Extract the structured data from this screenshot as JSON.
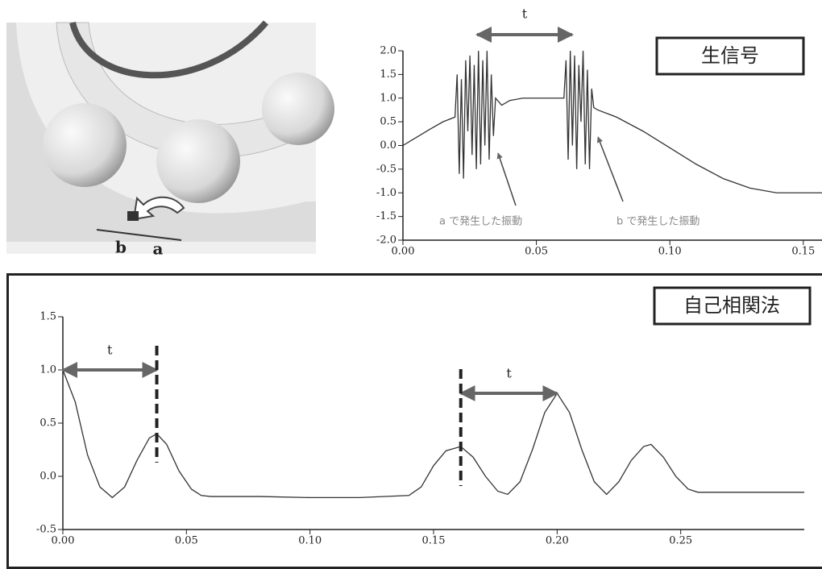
{
  "illustration": {
    "labels": [
      "b",
      "a"
    ]
  },
  "chart_data": [
    {
      "type": "line",
      "label_box": "生信号",
      "color": "#333333",
      "annotations": [
        {
          "text": "t"
        },
        {
          "text": "a で発生した振動"
        },
        {
          "text": "b で発生した振動"
        }
      ],
      "xlim": [
        0,
        0.157
      ],
      "ylim": [
        -2,
        2
      ],
      "xticks": [
        {
          "value": 0,
          "label": "0.00"
        },
        {
          "value": 0.05,
          "label": "0.05"
        },
        {
          "value": 0.1,
          "label": "0.10"
        },
        {
          "value": 0.15,
          "label": "0.15"
        }
      ],
      "yticks": [
        {
          "value": 2,
          "label": "2.0"
        },
        {
          "value": 1.5,
          "label": "1.5"
        },
        {
          "value": 1,
          "label": "1.0"
        },
        {
          "value": 0.5,
          "label": "0.5"
        },
        {
          "value": 0,
          "label": "0.0"
        },
        {
          "value": -0.5,
          "label": "-0.5"
        },
        {
          "value": -1,
          "label": "-1.0"
        },
        {
          "value": -1.5,
          "label": "-1.5"
        },
        {
          "value": -2,
          "label": "-2.0"
        }
      ],
      "x": [
        0,
        0.005,
        0.01,
        0.015,
        0.0195,
        0.0203,
        0.0211,
        0.0219,
        0.0227,
        0.0235,
        0.0243,
        0.0251,
        0.0259,
        0.0267,
        0.0275,
        0.0283,
        0.0291,
        0.0299,
        0.0307,
        0.0315,
        0.0323,
        0.0331,
        0.0339,
        0.0347,
        0.037,
        0.04,
        0.045,
        0.05,
        0.055,
        0.0595,
        0.0603,
        0.0611,
        0.0619,
        0.0627,
        0.0635,
        0.0643,
        0.0651,
        0.0659,
        0.0667,
        0.0675,
        0.0683,
        0.0691,
        0.0699,
        0.0707,
        0.0715,
        0.073,
        0.08,
        0.09,
        0.1,
        0.11,
        0.12,
        0.13,
        0.14,
        0.15,
        0.157
      ],
      "values": [
        0,
        0.17,
        0.34,
        0.5,
        0.6,
        1.5,
        -0.6,
        1.4,
        -0.7,
        1.8,
        0.3,
        1.9,
        -0.2,
        1.7,
        -0.5,
        2.0,
        -0.4,
        1.8,
        0.0,
        2.0,
        -0.3,
        1.5,
        0.2,
        1.0,
        0.85,
        0.95,
        1.0,
        1.0,
        1.0,
        1.0,
        1.0,
        1.8,
        -0.3,
        2.0,
        0.0,
        1.9,
        -0.5,
        1.7,
        0.5,
        2.0,
        -0.4,
        1.6,
        -0.5,
        1.2,
        0.8,
        0.75,
        0.6,
        0.3,
        -0.05,
        -0.4,
        -0.7,
        -0.9,
        -1.0,
        -1.0,
        -1.0
      ]
    },
    {
      "type": "line",
      "label_box": "自己相関法",
      "color": "#333333",
      "annotations": [
        {
          "text": "t",
          "x": [
            0,
            0.038
          ],
          "y": 1.0
        },
        {
          "text": "t",
          "x": [
            0.161,
            0.2
          ],
          "y": 0.78
        }
      ],
      "xlim": [
        0,
        0.3
      ],
      "ylim": [
        -0.5,
        1.5
      ],
      "xticks": [
        {
          "value": 0,
          "label": "0.00"
        },
        {
          "value": 0.05,
          "label": "0.05"
        },
        {
          "value": 0.1,
          "label": "0.10"
        },
        {
          "value": 0.15,
          "label": "0.15"
        },
        {
          "value": 0.2,
          "label": "0.20"
        },
        {
          "value": 0.25,
          "label": "0.25"
        }
      ],
      "yticks": [
        {
          "value": 1.5,
          "label": "1.5"
        },
        {
          "value": 1,
          "label": "1.0"
        },
        {
          "value": 0.5,
          "label": "0.5"
        },
        {
          "value": 0,
          "label": "0.0"
        },
        {
          "value": -0.5,
          "label": "-0.5"
        }
      ],
      "x": [
        0,
        0.005,
        0.01,
        0.015,
        0.02,
        0.025,
        0.03,
        0.035,
        0.038,
        0.042,
        0.047,
        0.052,
        0.056,
        0.06,
        0.08,
        0.1,
        0.12,
        0.14,
        0.145,
        0.15,
        0.155,
        0.161,
        0.166,
        0.171,
        0.176,
        0.18,
        0.185,
        0.19,
        0.195,
        0.2,
        0.205,
        0.21,
        0.215,
        0.22,
        0.225,
        0.23,
        0.235,
        0.238,
        0.243,
        0.248,
        0.253,
        0.257,
        0.27,
        0.3
      ],
      "values": [
        1.0,
        0.7,
        0.2,
        -0.1,
        -0.2,
        -0.1,
        0.15,
        0.36,
        0.4,
        0.3,
        0.05,
        -0.12,
        -0.18,
        -0.19,
        -0.19,
        -0.2,
        -0.2,
        -0.18,
        -0.1,
        0.1,
        0.24,
        0.28,
        0.18,
        0.0,
        -0.14,
        -0.17,
        -0.05,
        0.25,
        0.6,
        0.78,
        0.6,
        0.25,
        -0.05,
        -0.17,
        -0.05,
        0.15,
        0.28,
        0.3,
        0.18,
        0.0,
        -0.12,
        -0.15,
        -0.15,
        -0.15
      ]
    }
  ]
}
